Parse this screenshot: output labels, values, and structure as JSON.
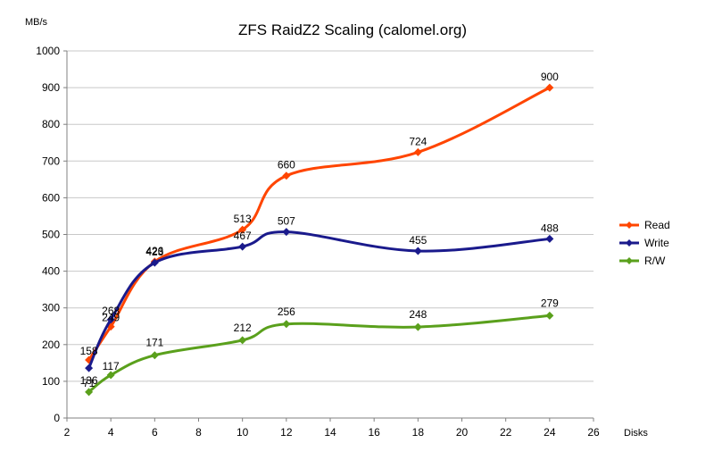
{
  "chart_data": {
    "type": "line",
    "title": "ZFS RaidZ2 Scaling (calomel.org)",
    "ylabel": "MB/s",
    "xlabel": "Disks",
    "xlim": [
      2,
      26
    ],
    "ylim": [
      0,
      1000
    ],
    "x_ticks": [
      "2",
      "4",
      "6",
      "8",
      "10",
      "12",
      "14",
      "16",
      "18",
      "20",
      "22",
      "24",
      "26"
    ],
    "y_ticks": [
      "0",
      "100",
      "200",
      "300",
      "400",
      "500",
      "600",
      "700",
      "800",
      "900",
      "1000"
    ],
    "grid": "horizontal",
    "legend_position": "right",
    "series": [
      {
        "name": "Read",
        "color": "#ff4500",
        "x": [
          3,
          4,
          6,
          10,
          12,
          18,
          24
        ],
        "values": [
          158,
          249,
          426,
          513,
          660,
          724,
          900
        ],
        "labels": [
          "158",
          "249",
          "426",
          "513",
          "660",
          "724",
          "900"
        ]
      },
      {
        "name": "Write",
        "color": "#1a1a8c",
        "x": [
          3,
          4,
          6,
          10,
          12,
          18,
          24
        ],
        "values": [
          136,
          268,
          423,
          467,
          507,
          455,
          488
        ],
        "labels": [
          "136",
          "268",
          "423",
          "467",
          "507",
          "455",
          "488"
        ]
      },
      {
        "name": "R/W",
        "color": "#5aa01c",
        "x": [
          3,
          4,
          6,
          10,
          12,
          18,
          24
        ],
        "values": [
          71,
          117,
          171,
          212,
          256,
          248,
          279
        ],
        "labels": [
          "71",
          "117",
          "171",
          "212",
          "256",
          "248",
          "279"
        ]
      }
    ]
  }
}
